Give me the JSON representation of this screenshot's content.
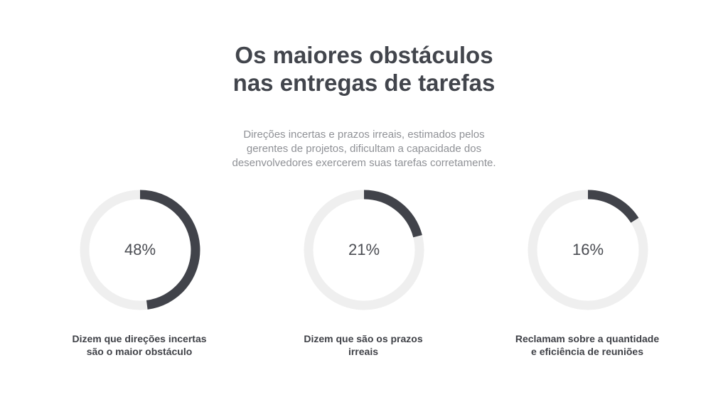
{
  "header": {
    "title_lines": [
      "Os maiores obstáculos",
      "nas entregas de tarefas"
    ],
    "subtitle_lines": [
      "Direções incertas e prazos irreais, estimados pelos",
      "gerentes de projetos, dificultam a capacidade dos",
      "desenvolvedores exercerem suas tarefas corretamente."
    ]
  },
  "colors": {
    "track": "#efefef",
    "progress": "#41434a",
    "title": "#42454c",
    "subtitle": "#8f9196"
  },
  "chart_data": {
    "type": "pie",
    "style": "donut-progress",
    "items": [
      {
        "value": 48,
        "label": "48%",
        "caption_lines": [
          "Dizem que direções incertas",
          "são o maior obstáculo"
        ]
      },
      {
        "value": 21,
        "label": "21%",
        "caption_lines": [
          "Dizem que são os prazos",
          "irreais"
        ]
      },
      {
        "value": 16,
        "label": "16%",
        "caption_lines": [
          "Reclamam sobre a quantidade",
          "e eficiência de reuniões"
        ]
      }
    ]
  }
}
